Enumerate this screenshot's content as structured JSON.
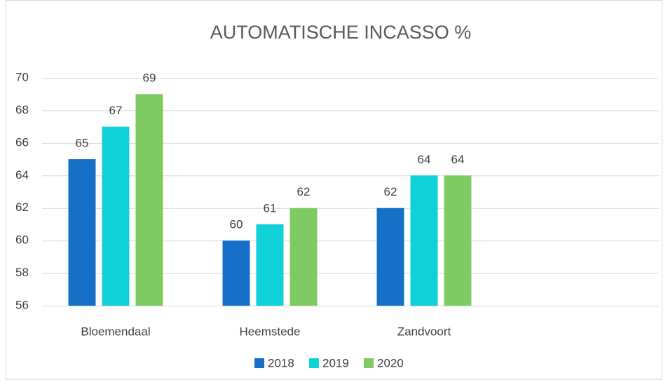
{
  "chart_data": {
    "type": "bar",
    "title": "AUTOMATISCHE INCASSO %",
    "categories": [
      "Bloemendaal",
      "Heemstede",
      "Zandvoort",
      null
    ],
    "series": [
      {
        "name": "2018",
        "color": "#1670c8",
        "values": [
          65,
          60,
          62,
          null
        ]
      },
      {
        "name": "2019",
        "color": "#10d0d8",
        "values": [
          67,
          61,
          64,
          null
        ]
      },
      {
        "name": "2020",
        "color": "#7ecb63",
        "values": [
          69,
          62,
          64,
          null
        ]
      }
    ],
    "ylim": [
      56,
      70
    ],
    "yticks": [
      56,
      58,
      60,
      62,
      64,
      66,
      68,
      70
    ],
    "grid": true,
    "legend": "bottom"
  }
}
